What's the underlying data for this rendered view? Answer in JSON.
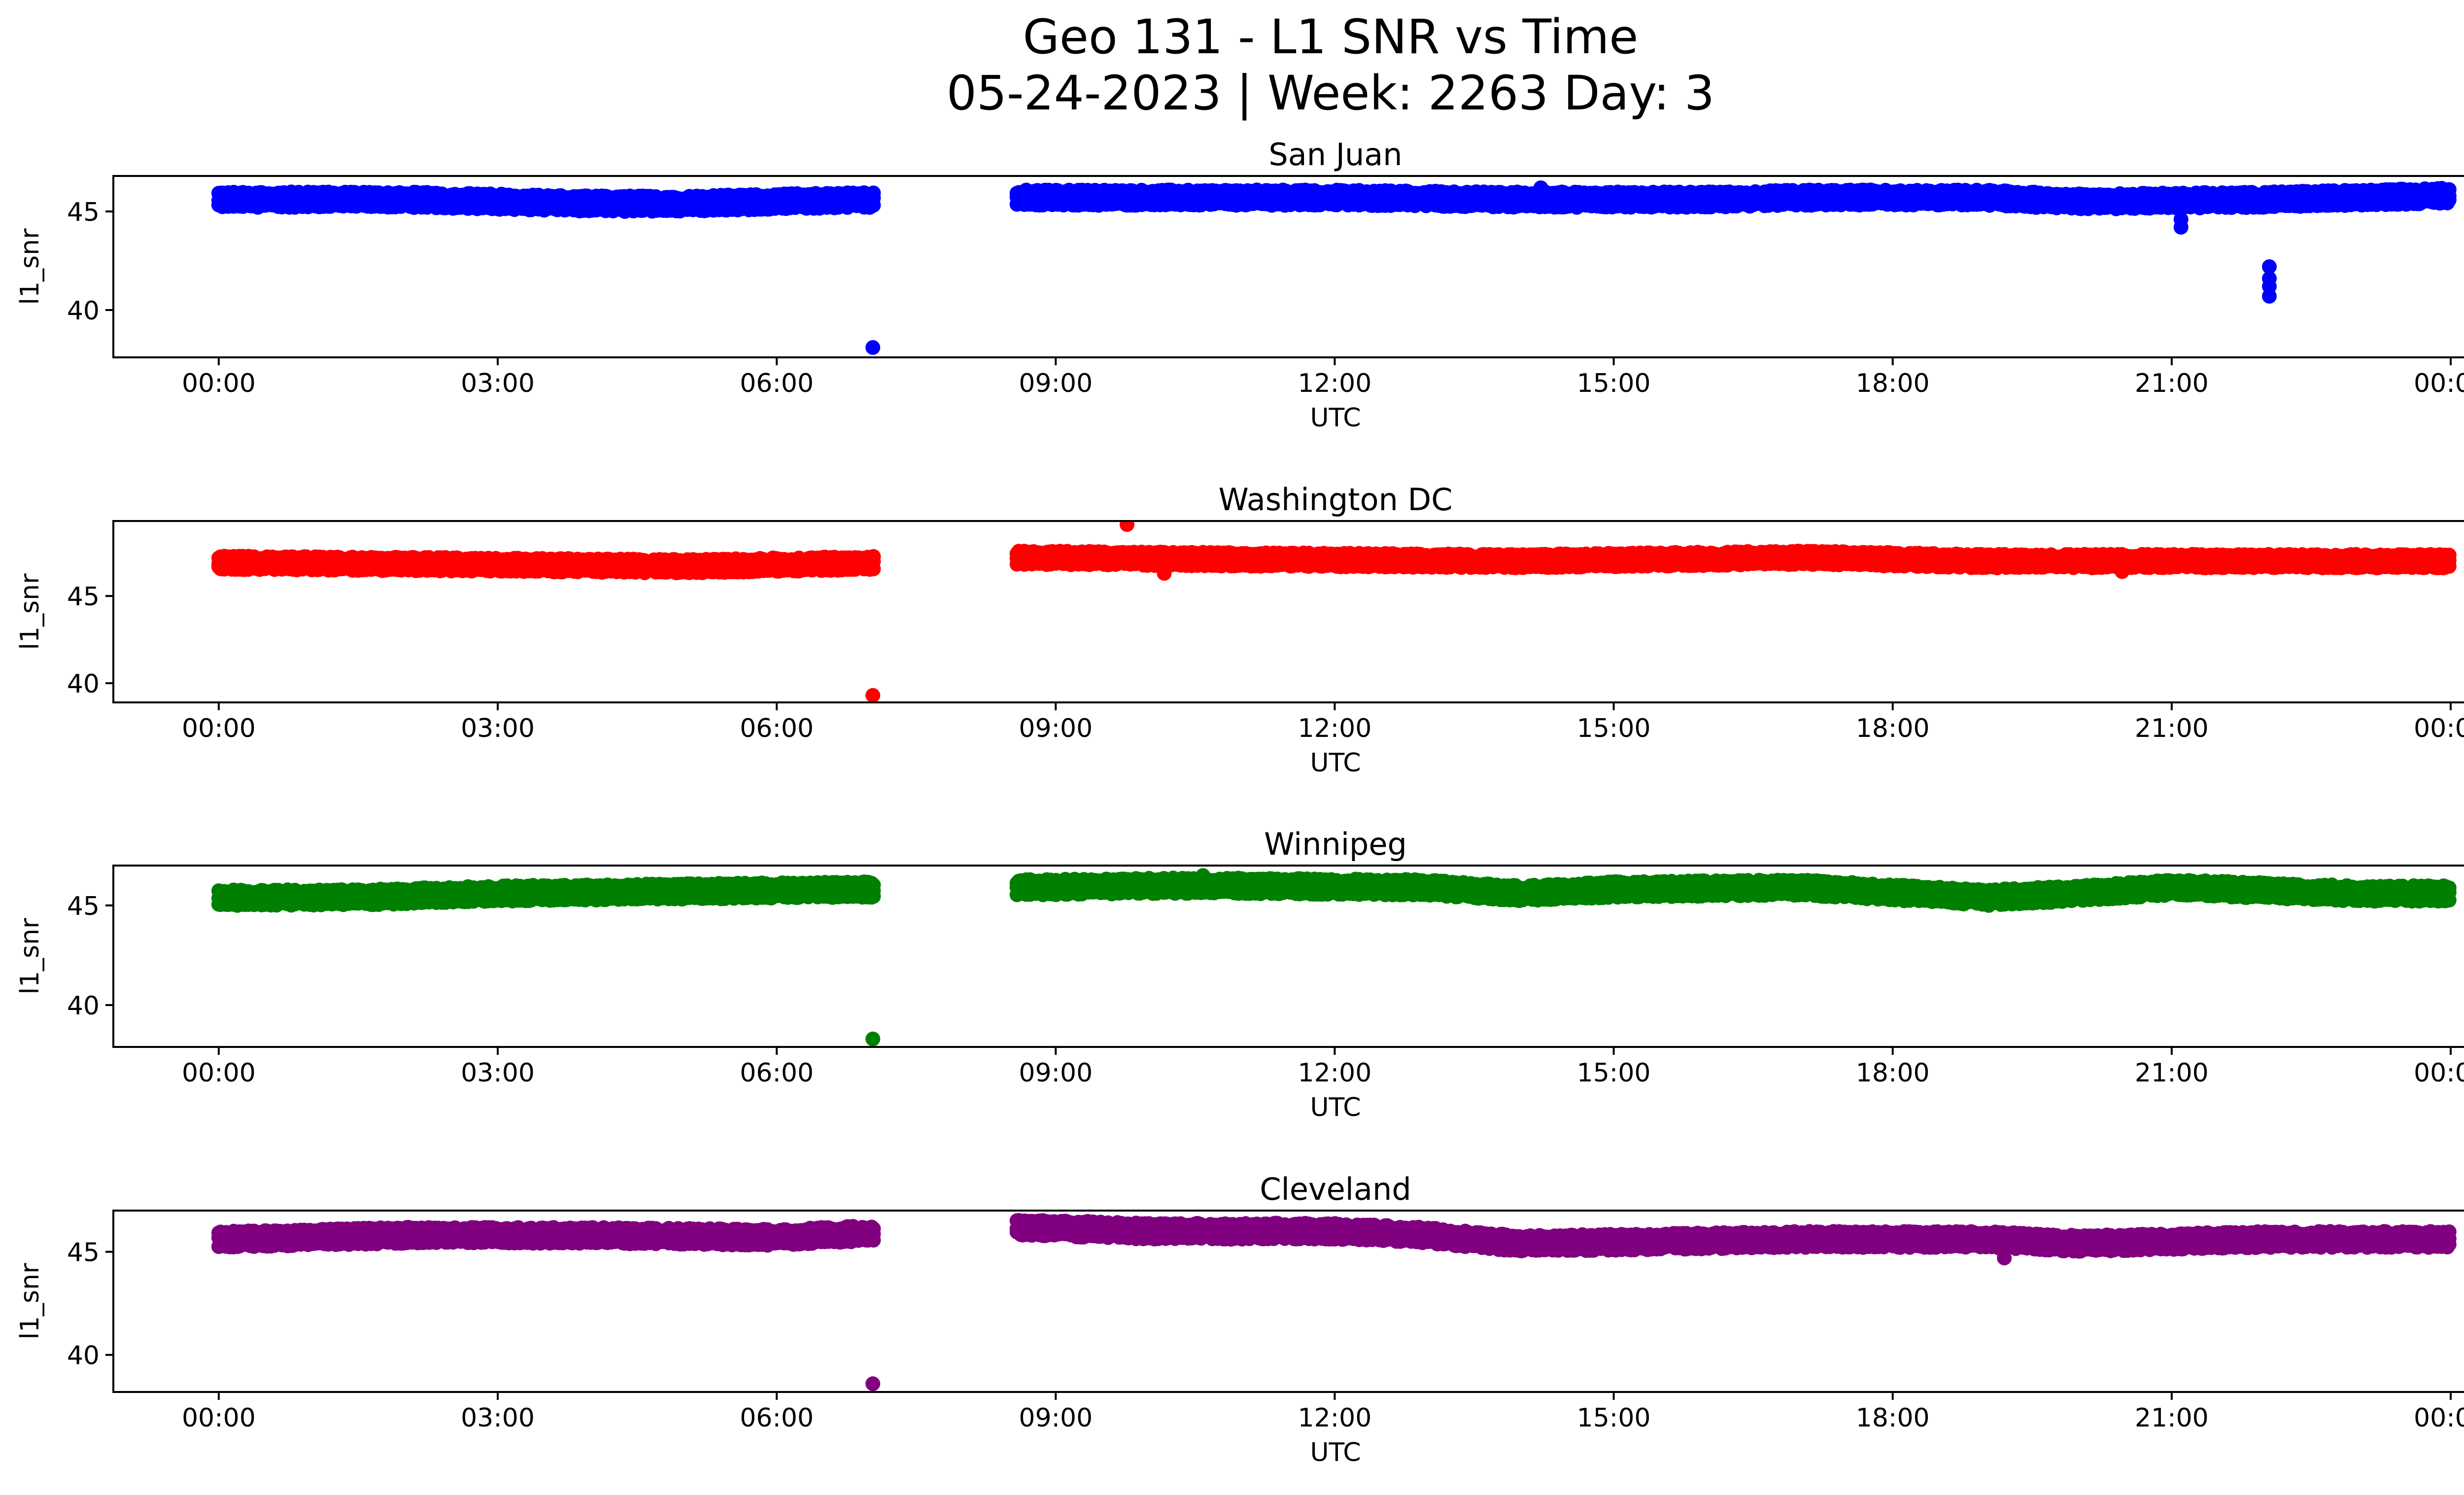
{
  "figure": {
    "title_line1": "Geo 131 - L1 SNR vs Time",
    "title_line2": "05-24-2023 | Week: 2263 Day: 3"
  },
  "chart_data": [
    {
      "type": "scatter",
      "title": "San Juan",
      "xlabel": "UTC",
      "ylabel": "l1_snr",
      "color": "#0000ff",
      "xlim": [
        "2023-05-23 22:52",
        "2023-05-25 01:09"
      ],
      "ylim": [
        37.6,
        46.8
      ],
      "x_ticks": [
        "00:00",
        "03:00",
        "06:00",
        "09:00",
        "12:00",
        "15:00",
        "18:00",
        "21:00",
        "00:00"
      ],
      "y_ticks": [
        40,
        45
      ],
      "bands": [
        {
          "from": "00:00",
          "to": "07:03",
          "base": [
            [
              0,
              45.6
            ],
            [
              1,
              45.6
            ],
            [
              2,
              45.6
            ],
            [
              3,
              45.5
            ],
            [
              4,
              45.4
            ],
            [
              5,
              45.4
            ],
            [
              6,
              45.5
            ],
            [
              7.05,
              45.6
            ]
          ],
          "halfwidth": 0.3
        },
        {
          "from": "08:35",
          "to": "23:59",
          "base": [
            [
              8.58,
              45.7
            ],
            [
              10,
              45.7
            ],
            [
              12,
              45.7
            ],
            [
              14,
              45.6
            ],
            [
              16,
              45.6
            ],
            [
              17,
              45.7
            ],
            [
              19,
              45.7
            ],
            [
              20,
              45.5
            ],
            [
              22,
              45.6
            ],
            [
              24,
              45.8
            ]
          ],
          "halfwidth": 0.3
        }
      ],
      "outliers": [
        {
          "time": "07:02",
          "value": 38.1
        },
        {
          "time": "21:06",
          "value": 44.2
        },
        {
          "time": "21:06",
          "value": 44.6
        },
        {
          "time": "22:03",
          "value": 40.7
        },
        {
          "time": "22:03",
          "value": 41.2
        },
        {
          "time": "22:03",
          "value": 41.6
        },
        {
          "time": "22:03",
          "value": 42.2
        },
        {
          "time": "04:22",
          "value": 45.0
        },
        {
          "time": "14:13",
          "value": 46.2
        }
      ]
    },
    {
      "type": "scatter",
      "title": "Washington DC",
      "xlabel": "UTC",
      "ylabel": "l1_snr",
      "color": "#ff0000",
      "xlim": [
        "2023-05-23 22:52",
        "2023-05-25 01:09"
      ],
      "ylim": [
        38.9,
        49.3
      ],
      "x_ticks": [
        "00:00",
        "03:00",
        "06:00",
        "09:00",
        "12:00",
        "15:00",
        "18:00",
        "21:00",
        "00:00"
      ],
      "y_ticks": [
        40,
        45
      ],
      "bands": [
        {
          "from": "00:00",
          "to": "07:03",
          "base": [
            [
              0,
              46.9
            ],
            [
              3,
              46.8
            ],
            [
              5,
              46.7
            ],
            [
              7.05,
              46.9
            ]
          ],
          "halfwidth": 0.3
        },
        {
          "from": "08:35",
          "to": "23:59",
          "base": [
            [
              8.58,
              47.2
            ],
            [
              11,
              47.1
            ],
            [
              14,
              47.0
            ],
            [
              17,
              47.2
            ],
            [
              19,
              47.0
            ],
            [
              21,
              47.0
            ],
            [
              24,
              47.0
            ]
          ],
          "halfwidth": 0.3
        }
      ],
      "outliers": [
        {
          "time": "07:02",
          "value": 39.3
        },
        {
          "time": "09:46",
          "value": 49.1
        },
        {
          "time": "10:10",
          "value": 46.3
        },
        {
          "time": "03:41",
          "value": 46.4
        },
        {
          "time": "04:58",
          "value": 46.4
        },
        {
          "time": "20:28",
          "value": 46.4
        }
      ]
    },
    {
      "type": "scatter",
      "title": "Winnipeg",
      "xlabel": "UTC",
      "ylabel": "l1_snr",
      "color": "#008000",
      "xlim": [
        "2023-05-23 22:52",
        "2023-05-25 01:09"
      ],
      "ylim": [
        37.9,
        47.0
      ],
      "x_ticks": [
        "00:00",
        "03:00",
        "06:00",
        "09:00",
        "12:00",
        "15:00",
        "18:00",
        "21:00",
        "00:00"
      ],
      "y_ticks": [
        40,
        45
      ],
      "bands": [
        {
          "from": "00:00",
          "to": "07:03",
          "base": [
            [
              0,
              45.4
            ],
            [
              1.5,
              45.4
            ],
            [
              3,
              45.6
            ],
            [
              5,
              45.7
            ],
            [
              7.05,
              45.8
            ]
          ],
          "halfwidth": 0.3
        },
        {
          "from": "08:35",
          "to": "23:59",
          "base": [
            [
              8.58,
              45.9
            ],
            [
              10.5,
              46.0
            ],
            [
              13,
              45.9
            ],
            [
              14,
              45.6
            ],
            [
              15,
              45.8
            ],
            [
              17,
              45.9
            ],
            [
              19,
              45.4
            ],
            [
              20,
              45.6
            ],
            [
              21,
              45.9
            ],
            [
              23,
              45.6
            ],
            [
              24,
              45.6
            ]
          ],
          "halfwidth": 0.3
        }
      ],
      "outliers": [
        {
          "time": "07:02",
          "value": 38.3
        },
        {
          "time": "10:35",
          "value": 46.5
        },
        {
          "time": "00:12",
          "value": 45.0
        },
        {
          "time": "19:02",
          "value": 45.0
        }
      ]
    },
    {
      "type": "scatter",
      "title": "Cleveland",
      "xlabel": "UTC",
      "ylabel": "l1_snr",
      "color": "#800080",
      "xlim": [
        "2023-05-23 22:52",
        "2023-05-25 01:09"
      ],
      "ylim": [
        38.2,
        47.0
      ],
      "x_ticks": [
        "00:00",
        "03:00",
        "06:00",
        "09:00",
        "12:00",
        "15:00",
        "18:00",
        "21:00",
        "00:00"
      ],
      "y_ticks": [
        40,
        45
      ],
      "bands": [
        {
          "from": "00:00",
          "to": "07:03",
          "base": [
            [
              0,
              45.6
            ],
            [
              2,
              45.8
            ],
            [
              4,
              45.8
            ],
            [
              6,
              45.7
            ],
            [
              7.05,
              45.9
            ]
          ],
          "halfwidth": 0.3
        },
        {
          "from": "08:35",
          "to": "23:59",
          "base": [
            [
              8.58,
              46.2
            ],
            [
              10,
              46.0
            ],
            [
              12,
              46.0
            ],
            [
              13,
              45.8
            ],
            [
              14,
              45.4
            ],
            [
              15.5,
              45.5
            ],
            [
              17,
              45.6
            ],
            [
              19,
              45.6
            ],
            [
              20,
              45.4
            ],
            [
              22,
              45.6
            ],
            [
              24,
              45.6
            ]
          ],
          "halfwidth": 0.3
        }
      ],
      "outliers": [
        {
          "time": "07:02",
          "value": 38.6
        },
        {
          "time": "19:12",
          "value": 44.7
        },
        {
          "time": "08:40",
          "value": 46.5
        }
      ]
    }
  ]
}
